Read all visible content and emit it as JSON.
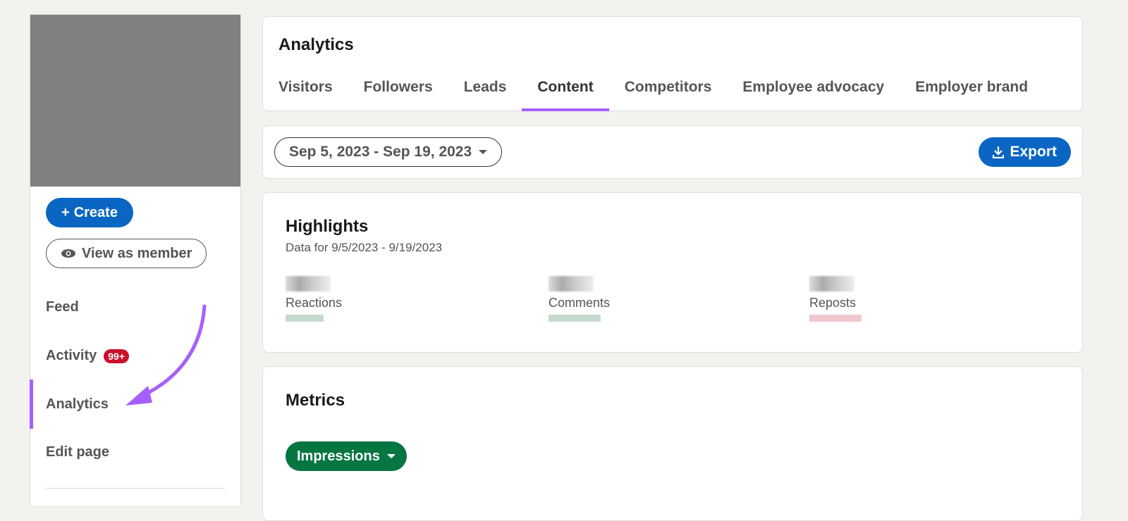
{
  "sidebar": {
    "create_label": "Create",
    "view_as_member_label": "View as member",
    "items": [
      {
        "label": "Feed"
      },
      {
        "label": "Activity",
        "badge": "99+"
      },
      {
        "label": "Analytics",
        "active": true
      },
      {
        "label": "Edit page"
      }
    ]
  },
  "header": {
    "title": "Analytics",
    "tabs": [
      {
        "label": "Visitors"
      },
      {
        "label": "Followers"
      },
      {
        "label": "Leads"
      },
      {
        "label": "Content",
        "active": true
      },
      {
        "label": "Competitors"
      },
      {
        "label": "Employee advocacy"
      },
      {
        "label": "Employer brand"
      }
    ]
  },
  "filter": {
    "date_range": "Sep 5, 2023 - Sep 19, 2023",
    "export_label": "Export"
  },
  "highlights": {
    "title": "Highlights",
    "subtitle": "Data for 9/5/2023 - 9/19/2023",
    "items": [
      {
        "label": "Reactions",
        "trend": "up"
      },
      {
        "label": "Comments",
        "trend": "up"
      },
      {
        "label": "Reposts",
        "trend": "down"
      }
    ]
  },
  "metrics": {
    "title": "Metrics",
    "selected": "Impressions"
  },
  "colors": {
    "accent": "#a55fff",
    "primary": "#0a66c2",
    "metric": "#057642",
    "badge": "#cb112d"
  }
}
